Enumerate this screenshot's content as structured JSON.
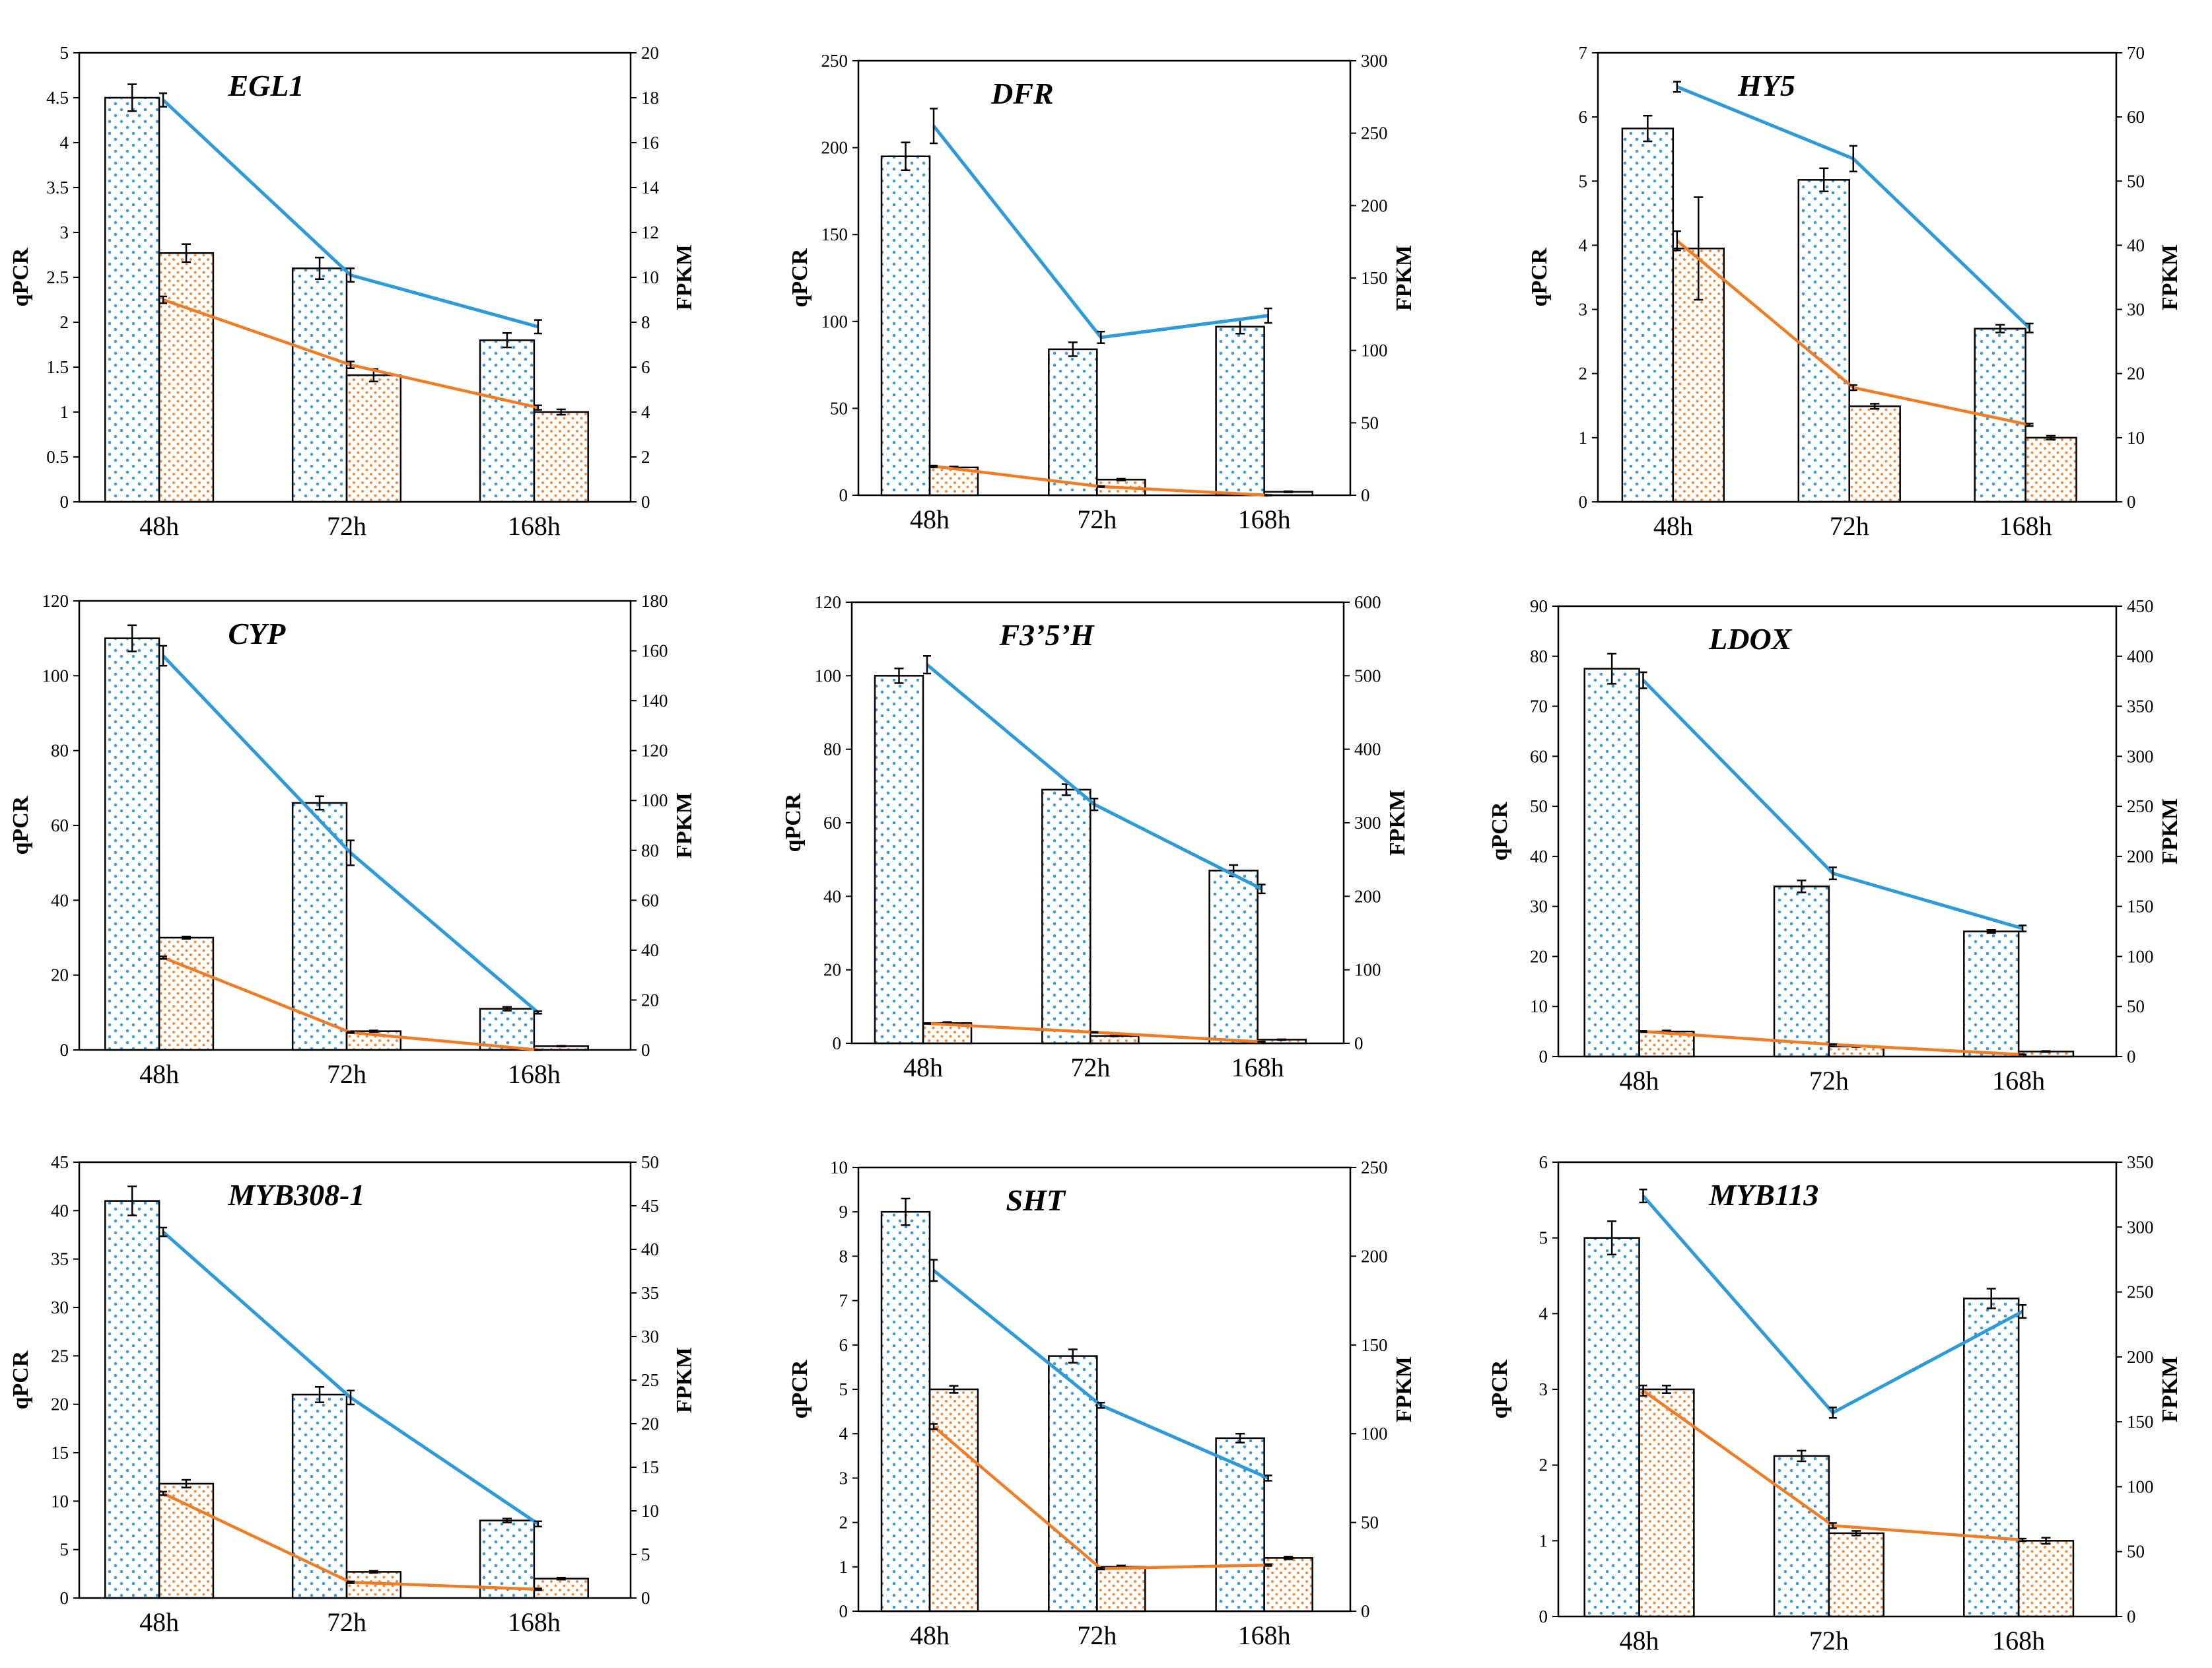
{
  "chart_data": [
    {
      "type": "bar+line",
      "title": "EGL1",
      "ylabel": "qPCR",
      "y2label": "FPKM",
      "categories": [
        "48h",
        "72h",
        "168h"
      ],
      "ylim": [
        0,
        5
      ],
      "yticks": [
        "0",
        "0.5",
        "1",
        "1.5",
        "2",
        "2.5",
        "3",
        "3.5",
        "4",
        "4.5",
        "5"
      ],
      "y2lim": [
        0,
        20
      ],
      "y2ticks": [
        "0",
        "2",
        "4",
        "6",
        "8",
        "10",
        "12",
        "14",
        "16",
        "18",
        "20"
      ],
      "series": [
        {
          "name": "qPCR bars blue",
          "axis": "left",
          "values": [
            4.5,
            2.6,
            1.8
          ],
          "errors": [
            0.15,
            0.12,
            0.08
          ],
          "color": "#3a9ad9"
        },
        {
          "name": "qPCR bars orange",
          "axis": "left",
          "values": [
            2.77,
            1.41,
            1.0
          ],
          "errors": [
            0.1,
            0.07,
            0.03
          ],
          "color": "#f08a3c"
        },
        {
          "name": "FPKM line blue",
          "axis": "right",
          "values": [
            17.9,
            10.1,
            7.8
          ],
          "errors": [
            0.3,
            0.3,
            0.3
          ],
          "color": "#2f9ad8"
        },
        {
          "name": "FPKM line orange",
          "axis": "right",
          "values": [
            9.0,
            6.1,
            4.2
          ],
          "errors": [
            0.15,
            0.15,
            0.1
          ],
          "color": "#f07c26"
        }
      ]
    },
    {
      "type": "bar+line",
      "title": "DFR",
      "ylabel": "qPCR",
      "y2label": "FPKM",
      "categories": [
        "48h",
        "72h",
        "168h"
      ],
      "ylim": [
        0,
        250
      ],
      "yticks": [
        "0",
        "50",
        "100",
        "150",
        "200",
        "250"
      ],
      "y2lim": [
        0,
        300
      ],
      "y2ticks": [
        "0",
        "50",
        "100",
        "150",
        "200",
        "250",
        "300"
      ],
      "series": [
        {
          "name": "qPCR bars blue",
          "axis": "left",
          "values": [
            195,
            84,
            97
          ],
          "errors": [
            8,
            4,
            4
          ],
          "color": "#3a9ad9"
        },
        {
          "name": "qPCR bars orange",
          "axis": "left",
          "values": [
            16,
            9,
            2
          ],
          "errors": [
            0.5,
            0.5,
            0.3
          ],
          "color": "#f08a3c"
        },
        {
          "name": "FPKM line blue",
          "axis": "right",
          "values": [
            255,
            109,
            124
          ],
          "errors": [
            12,
            4,
            5
          ],
          "color": "#2f9ad8"
        },
        {
          "name": "FPKM line orange",
          "axis": "right",
          "values": [
            20,
            6,
            0
          ],
          "errors": [
            0.5,
            0.3,
            0.2
          ],
          "color": "#f07c26"
        }
      ]
    },
    {
      "type": "bar+line",
      "title": "HY5",
      "ylabel": "qPCR",
      "y2label": "FPKM",
      "categories": [
        "48h",
        "72h",
        "168h"
      ],
      "ylim": [
        0,
        7
      ],
      "yticks": [
        "0",
        "1",
        "2",
        "3",
        "4",
        "5",
        "6",
        "7"
      ],
      "y2lim": [
        0,
        70
      ],
      "y2ticks": [
        "0",
        "10",
        "20",
        "30",
        "40",
        "50",
        "60",
        "70"
      ],
      "series": [
        {
          "name": "qPCR bars blue",
          "axis": "left",
          "values": [
            5.82,
            5.02,
            2.7
          ],
          "errors": [
            0.2,
            0.18,
            0.06
          ],
          "color": "#3a9ad9"
        },
        {
          "name": "qPCR bars orange",
          "axis": "left",
          "values": [
            3.95,
            1.49,
            1.0
          ],
          "errors": [
            0.8,
            0.04,
            0.03
          ],
          "color": "#f08a3c"
        },
        {
          "name": "FPKM line blue",
          "axis": "right",
          "values": [
            64.7,
            53.5,
            27.1
          ],
          "errors": [
            0.8,
            2,
            0.7
          ],
          "color": "#2f9ad8"
        },
        {
          "name": "FPKM line orange",
          "axis": "right",
          "values": [
            40.7,
            17.8,
            12.0
          ],
          "errors": [
            1.5,
            0.4,
            0.2
          ],
          "color": "#f07c26"
        }
      ]
    },
    {
      "type": "bar+line",
      "title": "CYP",
      "ylabel": "qPCR",
      "y2label": "FPKM",
      "categories": [
        "48h",
        "72h",
        "168h"
      ],
      "ylim": [
        0,
        120
      ],
      "yticks": [
        "0",
        "20",
        "40",
        "60",
        "80",
        "100",
        "120"
      ],
      "y2lim": [
        0,
        180
      ],
      "y2ticks": [
        "0",
        "20",
        "40",
        "60",
        "80",
        "100",
        "120",
        "140",
        "160",
        "180"
      ],
      "series": [
        {
          "name": "qPCR bars blue",
          "axis": "left",
          "values": [
            110,
            66,
            11
          ],
          "errors": [
            3.5,
            1.8,
            0.5
          ],
          "color": "#3a9ad9"
        },
        {
          "name": "qPCR bars orange",
          "axis": "left",
          "values": [
            30,
            5,
            1
          ],
          "errors": [
            0.3,
            0.2,
            0.1
          ],
          "color": "#f08a3c"
        },
        {
          "name": "FPKM line blue",
          "axis": "right",
          "values": [
            158,
            79,
            15
          ],
          "errors": [
            4,
            5,
            0.5
          ],
          "color": "#2f9ad8"
        },
        {
          "name": "FPKM line orange",
          "axis": "right",
          "values": [
            37,
            7,
            0
          ],
          "errors": [
            0.5,
            0.2,
            0.1
          ],
          "color": "#f07c26"
        }
      ]
    },
    {
      "type": "bar+line",
      "title": "F3’5’H",
      "ylabel": "qPCR",
      "y2label": "FPKM",
      "categories": [
        "48h",
        "72h",
        "168h"
      ],
      "ylim": [
        0,
        120
      ],
      "yticks": [
        "0",
        "20",
        "40",
        "60",
        "80",
        "100",
        "120"
      ],
      "y2lim": [
        0,
        600
      ],
      "y2ticks": [
        "0",
        "100",
        "200",
        "300",
        "400",
        "500",
        "600"
      ],
      "series": [
        {
          "name": "qPCR bars blue",
          "axis": "left",
          "values": [
            100,
            69,
            47
          ],
          "errors": [
            2,
            1.5,
            1.5
          ],
          "color": "#3a9ad9"
        },
        {
          "name": "qPCR bars orange",
          "axis": "left",
          "values": [
            5.5,
            2,
            1
          ],
          "errors": [
            0.3,
            0.1,
            0.1
          ],
          "color": "#f08a3c"
        },
        {
          "name": "FPKM line blue",
          "axis": "right",
          "values": [
            515,
            325,
            210
          ],
          "errors": [
            12,
            8,
            6
          ],
          "color": "#2f9ad8"
        },
        {
          "name": "FPKM line orange",
          "axis": "right",
          "values": [
            27,
            15,
            2
          ],
          "errors": [
            0.5,
            0.5,
            0.3
          ],
          "color": "#f07c26"
        }
      ]
    },
    {
      "type": "bar+line",
      "title": "LDOX",
      "ylabel": "qPCR",
      "y2label": "FPKM",
      "categories": [
        "48h",
        "72h",
        "168h"
      ],
      "ylim": [
        0,
        90
      ],
      "yticks": [
        "0",
        "10",
        "20",
        "30",
        "40",
        "50",
        "60",
        "70",
        "80",
        "90"
      ],
      "y2lim": [
        0,
        450
      ],
      "y2ticks": [
        "0",
        "50",
        "100",
        "150",
        "200",
        "250",
        "300",
        "350",
        "400",
        "450"
      ],
      "series": [
        {
          "name": "qPCR bars blue",
          "axis": "left",
          "values": [
            77.5,
            34,
            25
          ],
          "errors": [
            3,
            1.2,
            0.3
          ],
          "color": "#3a9ad9"
        },
        {
          "name": "qPCR bars orange",
          "axis": "left",
          "values": [
            5,
            2,
            1
          ],
          "errors": [
            0.2,
            0.1,
            0.1
          ],
          "color": "#f08a3c"
        },
        {
          "name": "FPKM line blue",
          "axis": "right",
          "values": [
            376,
            183,
            128
          ],
          "errors": [
            8,
            6,
            3
          ],
          "color": "#2f9ad8"
        },
        {
          "name": "FPKM line orange",
          "axis": "right",
          "values": [
            25,
            12,
            2
          ],
          "errors": [
            0.5,
            0.3,
            0.2
          ],
          "color": "#f07c26"
        }
      ]
    },
    {
      "type": "bar+line",
      "title": "MYB308-1",
      "ylabel": "qPCR",
      "y2label": "FPKM",
      "categories": [
        "48h",
        "72h",
        "168h"
      ],
      "ylim": [
        0,
        45
      ],
      "yticks": [
        "0",
        "5",
        "10",
        "15",
        "20",
        "25",
        "30",
        "35",
        "40",
        "45"
      ],
      "y2lim": [
        0,
        50
      ],
      "y2ticks": [
        "0",
        "5",
        "10",
        "15",
        "20",
        "25",
        "30",
        "35",
        "40",
        "45",
        "50"
      ],
      "series": [
        {
          "name": "qPCR bars blue",
          "axis": "left",
          "values": [
            41,
            21,
            8
          ],
          "errors": [
            1.5,
            0.8,
            0.2
          ],
          "color": "#3a9ad9"
        },
        {
          "name": "qPCR bars orange",
          "axis": "left",
          "values": [
            11.8,
            2.7,
            2
          ],
          "errors": [
            0.4,
            0.1,
            0.1
          ],
          "color": "#f08a3c"
        },
        {
          "name": "FPKM line blue",
          "axis": "right",
          "values": [
            42,
            23,
            8.5
          ],
          "errors": [
            0.5,
            0.8,
            0.3
          ],
          "color": "#2f9ad8"
        },
        {
          "name": "FPKM line orange",
          "axis": "right",
          "values": [
            12,
            1.8,
            1.0
          ],
          "errors": [
            0.2,
            0.1,
            0.1
          ],
          "color": "#f07c26"
        }
      ]
    },
    {
      "type": "bar+line",
      "title": "SHT",
      "ylabel": "qPCR",
      "y2label": "FPKM",
      "categories": [
        "48h",
        "72h",
        "168h"
      ],
      "ylim": [
        0,
        10
      ],
      "yticks": [
        "0",
        "1",
        "2",
        "3",
        "4",
        "5",
        "6",
        "7",
        "8",
        "9",
        "10"
      ],
      "y2lim": [
        0,
        250
      ],
      "y2ticks": [
        "0",
        "50",
        "100",
        "150",
        "200",
        "250"
      ],
      "series": [
        {
          "name": "qPCR bars blue",
          "axis": "left",
          "values": [
            9,
            5.75,
            3.9
          ],
          "errors": [
            0.3,
            0.15,
            0.1
          ],
          "color": "#3a9ad9"
        },
        {
          "name": "qPCR bars orange",
          "axis": "left",
          "values": [
            5,
            1,
            1.2
          ],
          "errors": [
            0.08,
            0.03,
            0.03
          ],
          "color": "#f08a3c"
        },
        {
          "name": "FPKM line blue",
          "axis": "right",
          "values": [
            192,
            116,
            75
          ],
          "errors": [
            6,
            1.5,
            1.5
          ],
          "color": "#2f9ad8"
        },
        {
          "name": "FPKM line orange",
          "axis": "right",
          "values": [
            104,
            24,
            26
          ],
          "errors": [
            1.5,
            0.5,
            0.5
          ],
          "color": "#f07c26"
        }
      ]
    },
    {
      "type": "bar+line",
      "title": "MYB113",
      "ylabel": "qPCR",
      "y2label": "FPKM",
      "categories": [
        "48h",
        "72h",
        "168h"
      ],
      "ylim": [
        0,
        6
      ],
      "yticks": [
        "0",
        "1",
        "2",
        "3",
        "4",
        "5",
        "6"
      ],
      "y2lim": [
        0,
        350
      ],
      "y2ticks": [
        "0",
        "50",
        "100",
        "150",
        "200",
        "250",
        "300",
        "350"
      ],
      "series": [
        {
          "name": "qPCR bars blue",
          "axis": "left",
          "values": [
            5,
            2.12,
            4.2
          ],
          "errors": [
            0.22,
            0.07,
            0.13
          ],
          "color": "#3a9ad9"
        },
        {
          "name": "qPCR bars orange",
          "axis": "left",
          "values": [
            3,
            1.1,
            1.0
          ],
          "errors": [
            0.05,
            0.03,
            0.04
          ],
          "color": "#f08a3c"
        },
        {
          "name": "FPKM line blue",
          "axis": "right",
          "values": [
            324,
            157,
            235
          ],
          "errors": [
            5,
            4,
            5
          ],
          "color": "#2f9ad8"
        },
        {
          "name": "FPKM line orange",
          "axis": "right",
          "values": [
            174,
            70,
            59
          ],
          "errors": [
            4,
            2,
            1
          ],
          "color": "#f07c26"
        }
      ]
    }
  ]
}
